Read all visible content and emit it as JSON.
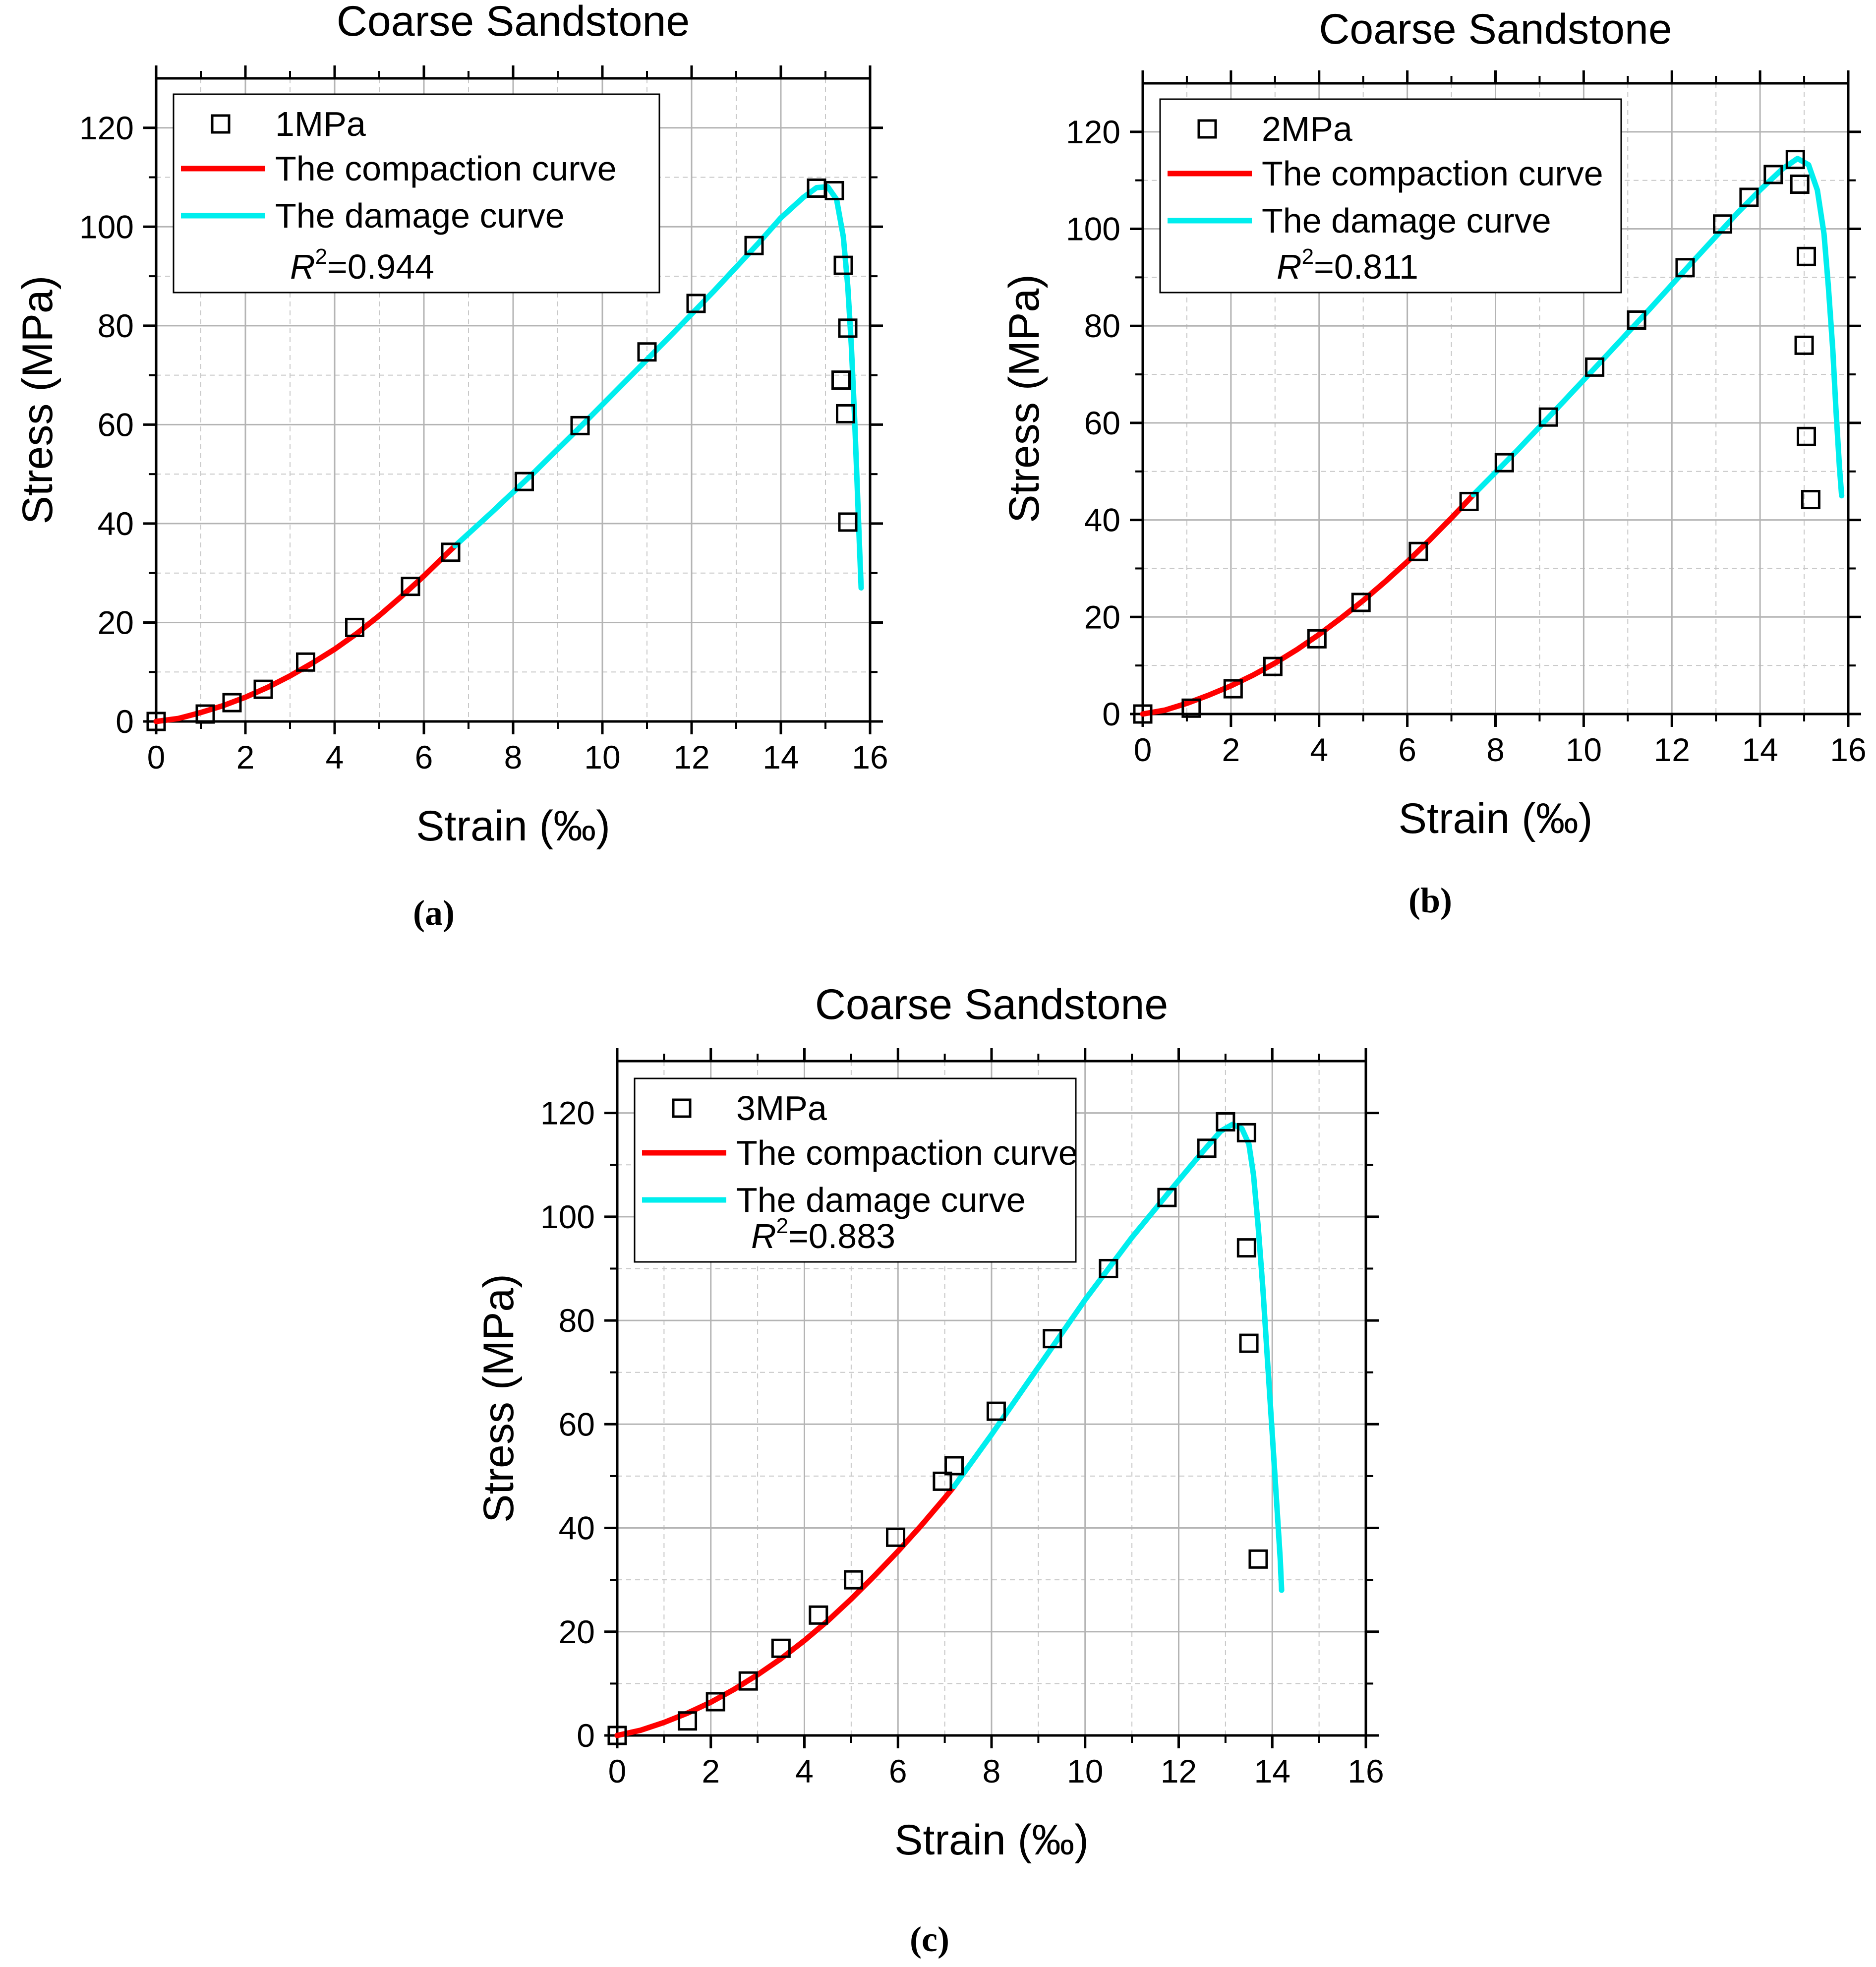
{
  "chart_data": [
    {
      "type": "scatter",
      "panel_label": "(a)",
      "title": "Coarse Sandstone",
      "xlabel": "Strain (‰)",
      "ylabel": "Stress (MPa)",
      "xlim": [
        0,
        16
      ],
      "ylim": [
        0,
        130
      ],
      "xticks": [
        "0",
        "2",
        "4",
        "6",
        "8",
        "10",
        "12",
        "14",
        "16"
      ],
      "yticks": [
        "0",
        "20",
        "40",
        "60",
        "80",
        "100",
        "120"
      ],
      "grid": true,
      "legend": {
        "position": "top-left",
        "scatter_label": "1MPa",
        "compaction_label": "The compaction curve",
        "damage_label": "The damage curve",
        "r2_prefix": "R",
        "r2_exp": "2",
        "r2_value": "=0.944"
      },
      "series": [
        {
          "name": "1MPa",
          "style": "open-square",
          "points": [
            [
              0,
              0
            ],
            [
              1.1,
              1.5
            ],
            [
              1.7,
              3.8
            ],
            [
              2.4,
              6.5
            ],
            [
              3.35,
              12
            ],
            [
              4.45,
              19
            ],
            [
              5.7,
              27.3
            ],
            [
              6.6,
              34.2
            ],
            [
              8.25,
              48.5
            ],
            [
              9.5,
              59.8
            ],
            [
              11.0,
              74.7
            ],
            [
              12.1,
              84.5
            ],
            [
              13.4,
              96.2
            ],
            [
              14.8,
              107.8
            ],
            [
              15.2,
              107.3
            ],
            [
              15.4,
              92.2
            ],
            [
              15.5,
              79.5
            ],
            [
              15.35,
              69
            ],
            [
              15.45,
              62.2
            ],
            [
              15.5,
              40.3
            ]
          ]
        },
        {
          "name": "The compaction curve",
          "color": "#ff0000",
          "points": [
            [
              0,
              0
            ],
            [
              0.5,
              0.6
            ],
            [
              1.0,
              1.8
            ],
            [
              1.5,
              3.2
            ],
            [
              2.0,
              4.9
            ],
            [
              2.5,
              6.9
            ],
            [
              3.0,
              9.2
            ],
            [
              3.5,
              11.8
            ],
            [
              4.0,
              14.6
            ],
            [
              4.5,
              17.8
            ],
            [
              5.0,
              21.4
            ],
            [
              5.5,
              25.3
            ],
            [
              6.0,
              29.4
            ],
            [
              6.5,
              33.8
            ],
            [
              6.7,
              35.5
            ]
          ]
        },
        {
          "name": "The damage curve",
          "color": "#00eeee",
          "points": [
            [
              6.7,
              35.5
            ],
            [
              7.5,
              42.1
            ],
            [
              8.5,
              50.6
            ],
            [
              9.5,
              59.5
            ],
            [
              10.5,
              68.6
            ],
            [
              11.5,
              77.7
            ],
            [
              12.5,
              87
            ],
            [
              13.5,
              96.7
            ],
            [
              14.0,
              101.8
            ],
            [
              14.5,
              105.9
            ],
            [
              14.8,
              107.9
            ],
            [
              15.05,
              108.1
            ],
            [
              15.25,
              105.5
            ],
            [
              15.4,
              98
            ],
            [
              15.5,
              88
            ],
            [
              15.58,
              76
            ],
            [
              15.65,
              62
            ],
            [
              15.71,
              48
            ],
            [
              15.76,
              36
            ],
            [
              15.8,
              27
            ]
          ]
        }
      ]
    },
    {
      "type": "scatter",
      "panel_label": "(b)",
      "title": "Coarse Sandstone",
      "xlabel": "Strain (‰)",
      "ylabel": "Stress (MPa)",
      "xlim": [
        0,
        16
      ],
      "ylim": [
        0,
        130
      ],
      "xticks": [
        "0",
        "2",
        "4",
        "6",
        "8",
        "10",
        "12",
        "14",
        "16"
      ],
      "yticks": [
        "0",
        "20",
        "40",
        "60",
        "80",
        "100",
        "120"
      ],
      "grid": true,
      "legend": {
        "position": "top-left",
        "scatter_label": "2MPa",
        "compaction_label": "The compaction curve",
        "damage_label": "The damage curve",
        "r2_prefix": "R",
        "r2_exp": "2",
        "r2_value": "=0.811"
      },
      "series": [
        {
          "name": "2MPa",
          "style": "open-square",
          "points": [
            [
              0,
              0
            ],
            [
              1.1,
              1.2
            ],
            [
              2.05,
              5.2
            ],
            [
              2.95,
              9.8
            ],
            [
              3.95,
              15.5
            ],
            [
              4.95,
              23
            ],
            [
              6.25,
              33.5
            ],
            [
              7.4,
              43.8
            ],
            [
              8.2,
              51.8
            ],
            [
              9.2,
              61.2
            ],
            [
              10.25,
              71.5
            ],
            [
              11.2,
              81.2
            ],
            [
              12.3,
              92
            ],
            [
              13.15,
              101
            ],
            [
              13.75,
              106.5
            ],
            [
              14.3,
              111.2
            ],
            [
              14.8,
              114.3
            ],
            [
              14.9,
              109.2
            ],
            [
              15.05,
              94.3
            ],
            [
              15.0,
              76
            ],
            [
              15.05,
              57.2
            ],
            [
              15.15,
              44.2
            ]
          ]
        },
        {
          "name": "The compaction curve",
          "color": "#ff0000",
          "points": [
            [
              0,
              0
            ],
            [
              0.5,
              0.8
            ],
            [
              1.0,
              2.2
            ],
            [
              1.5,
              3.9
            ],
            [
              2.0,
              5.8
            ],
            [
              2.5,
              8.0
            ],
            [
              3.0,
              10.5
            ],
            [
              3.5,
              13.3
            ],
            [
              4.0,
              16.4
            ],
            [
              4.5,
              19.8
            ],
            [
              5.0,
              23.4
            ],
            [
              5.5,
              27.3
            ],
            [
              6.0,
              31.4
            ],
            [
              6.5,
              35.8
            ],
            [
              7.0,
              40.4
            ],
            [
              7.5,
              45.2
            ]
          ]
        },
        {
          "name": "The damage curve",
          "color": "#00eeee",
          "points": [
            [
              7.5,
              45.2
            ],
            [
              8.5,
              54.4
            ],
            [
              9.5,
              64
            ],
            [
              10.5,
              73.7
            ],
            [
              11.5,
              83.5
            ],
            [
              12.5,
              93.5
            ],
            [
              13.5,
              103.4
            ],
            [
              14.0,
              108
            ],
            [
              14.5,
              112.3
            ],
            [
              14.85,
              114.5
            ],
            [
              15.1,
              113.2
            ],
            [
              15.3,
              108
            ],
            [
              15.45,
              99
            ],
            [
              15.55,
              88
            ],
            [
              15.65,
              75
            ],
            [
              15.72,
              63
            ],
            [
              15.8,
              51
            ],
            [
              15.85,
              45
            ]
          ]
        }
      ]
    },
    {
      "type": "scatter",
      "panel_label": "(c)",
      "title": "Coarse Sandstone",
      "xlabel": "Strain (‰)",
      "ylabel": "Stress (MPa)",
      "xlim": [
        0,
        16
      ],
      "ylim": [
        0,
        130
      ],
      "xticks": [
        "0",
        "2",
        "4",
        "6",
        "8",
        "10",
        "12",
        "14",
        "16"
      ],
      "yticks": [
        "0",
        "20",
        "40",
        "60",
        "80",
        "100",
        "120"
      ],
      "grid": true,
      "legend": {
        "position": "top-left",
        "scatter_label": "3MPa",
        "compaction_label": "The compaction curve",
        "damage_label": "The damage curve",
        "r2_prefix": "R",
        "r2_exp": "2",
        "r2_value": "=0.883"
      },
      "series": [
        {
          "name": "3MPa",
          "style": "open-square",
          "points": [
            [
              0,
              0
            ],
            [
              1.5,
              2.8
            ],
            [
              2.1,
              6.5
            ],
            [
              2.8,
              10.5
            ],
            [
              3.5,
              16.8
            ],
            [
              4.3,
              23.2
            ],
            [
              5.05,
              30
            ],
            [
              5.95,
              38.2
            ],
            [
              6.95,
              49
            ],
            [
              7.2,
              52
            ],
            [
              8.1,
              62.5
            ],
            [
              9.3,
              76.5
            ],
            [
              10.5,
              90
            ],
            [
              11.75,
              103.7
            ],
            [
              12.6,
              113.2
            ],
            [
              13.0,
              118.3
            ],
            [
              13.45,
              116.2
            ],
            [
              13.45,
              94
            ],
            [
              13.5,
              75.6
            ],
            [
              13.7,
              34
            ]
          ]
        },
        {
          "name": "The compaction curve",
          "color": "#ff0000",
          "points": [
            [
              0,
              0
            ],
            [
              0.5,
              1.0
            ],
            [
              1.0,
              2.5
            ],
            [
              1.5,
              4.3
            ],
            [
              2.0,
              6.4
            ],
            [
              2.5,
              8.9
            ],
            [
              3.0,
              11.7
            ],
            [
              3.5,
              14.8
            ],
            [
              4.0,
              18.3
            ],
            [
              4.5,
              22.1
            ],
            [
              5.0,
              26.3
            ],
            [
              5.5,
              30.8
            ],
            [
              6.0,
              35.5
            ],
            [
              6.5,
              40.5
            ],
            [
              7.0,
              45.8
            ],
            [
              7.2,
              48
            ]
          ]
        },
        {
          "name": "The damage curve",
          "color": "#00eeee",
          "points": [
            [
              7.2,
              48
            ],
            [
              8.0,
              58
            ],
            [
              9.0,
              71
            ],
            [
              10.0,
              84
            ],
            [
              11.0,
              96
            ],
            [
              12.0,
              107
            ],
            [
              12.5,
              112.4
            ],
            [
              12.9,
              116.5
            ],
            [
              13.15,
              117.8
            ],
            [
              13.35,
              117
            ],
            [
              13.5,
              114
            ],
            [
              13.6,
              108
            ],
            [
              13.7,
              98
            ],
            [
              13.8,
              86
            ],
            [
              13.9,
              72
            ],
            [
              14.0,
              58
            ],
            [
              14.1,
              44
            ],
            [
              14.17,
              34
            ],
            [
              14.2,
              28
            ]
          ]
        }
      ]
    }
  ]
}
